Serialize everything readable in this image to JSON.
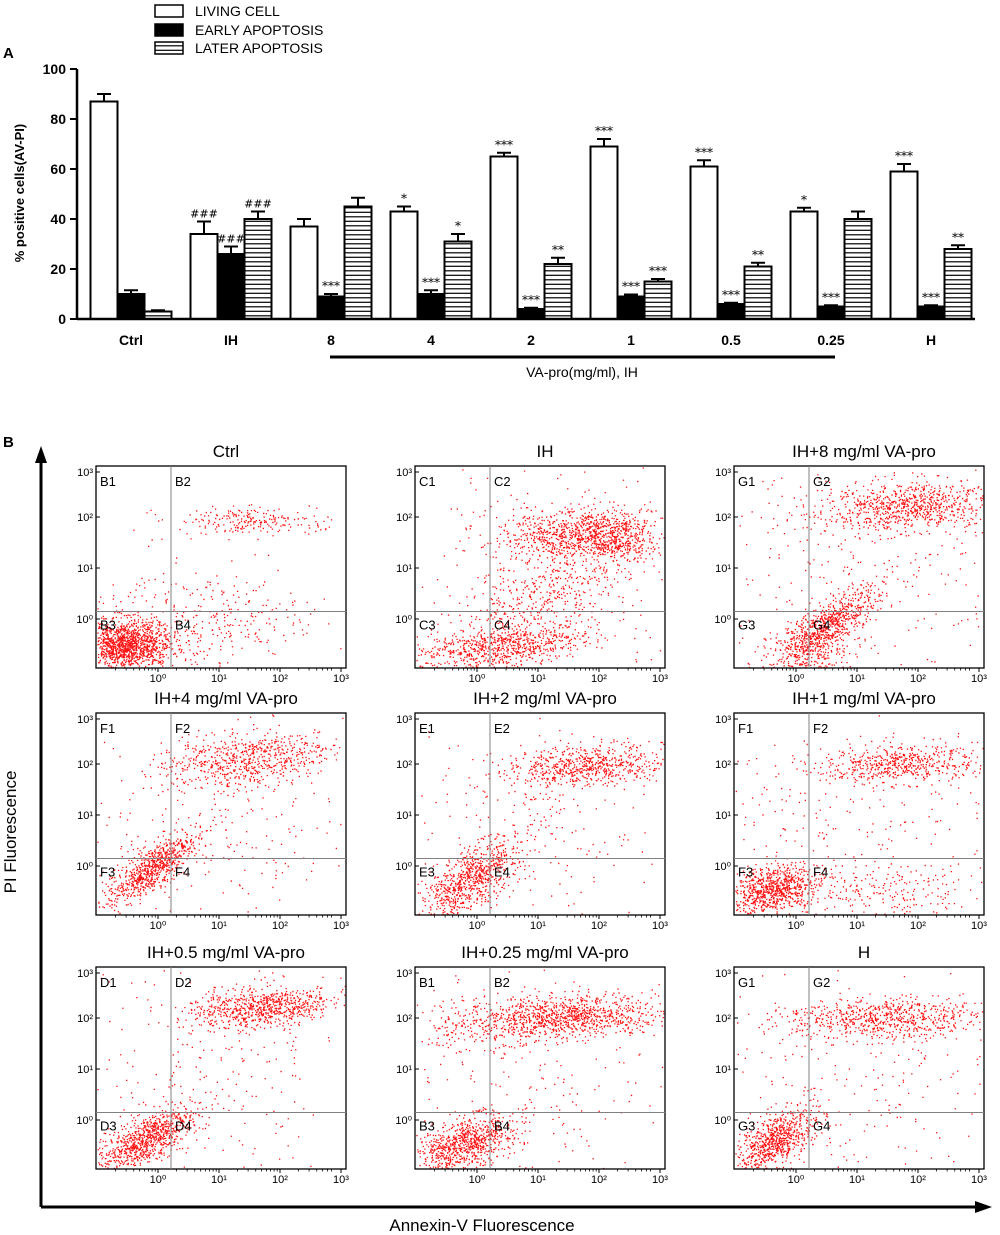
{
  "colors": {
    "dot": "#ff1010",
    "quadline": "#808080",
    "ink": "#000000",
    "white": "#ffffff"
  },
  "panel_a": {
    "letter": "A",
    "legend": [
      "LIVING CELL",
      "EARLY APOPTOSIS",
      "LATER APOPTOSIS"
    ],
    "bracket_label": "VA-pro(mg/ml), IH"
  },
  "panel_b": {
    "letter": "B",
    "y_title": "PI Fluorescence",
    "x_title": "Annexin-V Fluorescence",
    "tick_labels": [
      "10³",
      "10²",
      "10¹",
      "10⁰"
    ],
    "x_tick_labels": [
      "10⁰",
      "10¹",
      "10²",
      "10³"
    ],
    "plots": [
      {
        "title": "Ctrl",
        "quadrants": [
          "B1",
          "B2",
          "B3",
          "B4"
        ]
      },
      {
        "title": "IH",
        "quadrants": [
          "C1",
          "C2",
          "C3",
          "C4"
        ]
      },
      {
        "title": "IH+8 mg/ml VA-pro",
        "quadrants": [
          "G1",
          "G2",
          "G3",
          "G4"
        ]
      },
      {
        "title": "IH+4 mg/ml VA-pro",
        "quadrants": [
          "F1",
          "F2",
          "F3",
          "F4"
        ]
      },
      {
        "title": "IH+2 mg/ml VA-pro",
        "quadrants": [
          "E1",
          "E2",
          "E3",
          "E4"
        ]
      },
      {
        "title": "IH+1 mg/ml VA-pro",
        "quadrants": [
          "F1",
          "F2",
          "F3",
          "F4"
        ]
      },
      {
        "title": "IH+0.5 mg/ml VA-pro",
        "quadrants": [
          "D1",
          "D2",
          "D3",
          "D4"
        ]
      },
      {
        "title": "IH+0.25 mg/ml VA-pro",
        "quadrants": [
          "B1",
          "B2",
          "B3",
          "B4"
        ]
      },
      {
        "title": "H",
        "quadrants": [
          "G1",
          "G2",
          "G3",
          "G4"
        ]
      }
    ]
  },
  "chart_data": {
    "type": "bar",
    "title": "",
    "xlabel": "",
    "ylabel": "% positive cells(AV-PI)",
    "ylim": [
      0,
      100
    ],
    "yticks": [
      0,
      20,
      40,
      60,
      80,
      100
    ],
    "categories": [
      "Ctrl",
      "IH",
      "8",
      "4",
      "2",
      "1",
      "0.5",
      "0.25",
      "H"
    ],
    "series": [
      {
        "name": "LIVING CELL",
        "values": [
          87,
          34,
          37,
          43,
          65,
          69,
          61,
          43,
          59
        ],
        "errors": [
          3,
          5,
          3,
          2,
          1.5,
          3,
          2.5,
          1.5,
          3
        ],
        "labels": [
          "",
          "###",
          "",
          "*",
          "***",
          "***",
          "***",
          "*",
          "***"
        ]
      },
      {
        "name": "EARLY APOPTOSIS",
        "values": [
          10,
          26,
          9,
          10,
          4,
          9,
          6,
          5,
          5
        ],
        "errors": [
          1.5,
          3,
          1,
          1.5,
          0.5,
          0.8,
          0.5,
          0.5,
          0.5
        ],
        "labels": [
          "",
          "###",
          "***",
          "***",
          "***",
          "***",
          "***",
          "***",
          "***"
        ]
      },
      {
        "name": "LATER APOPTOSIS",
        "values": [
          3,
          40,
          45,
          31,
          22,
          15,
          21,
          40,
          28
        ],
        "errors": [
          0.5,
          3,
          3.5,
          3,
          2.5,
          1,
          1.5,
          3,
          1.5
        ],
        "labels": [
          "",
          "###",
          "",
          "*",
          "**",
          "***",
          "**",
          "",
          "**"
        ]
      }
    ]
  }
}
